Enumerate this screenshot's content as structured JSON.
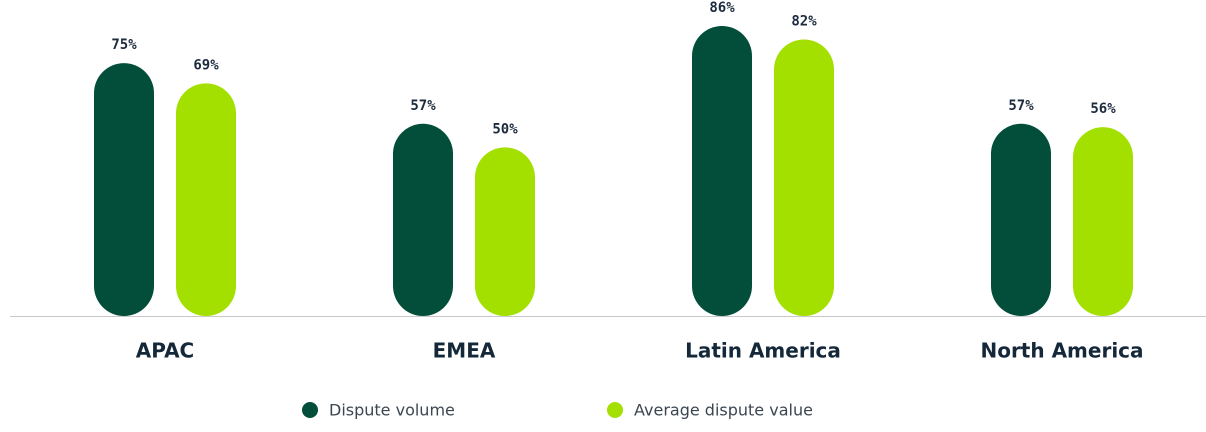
{
  "chart_data": {
    "type": "bar",
    "categories": [
      "APAC",
      "EMEA",
      "Latin America",
      "North America"
    ],
    "series": [
      {
        "name": "Dispute volume",
        "color": "#034e3a",
        "values": [
          75,
          57,
          86,
          57
        ],
        "value_labels": [
          "75%",
          "57%",
          "86%",
          "57%"
        ]
      },
      {
        "name": "Average dispute value",
        "color": "#a3e000",
        "values": [
          69,
          50,
          82,
          56
        ],
        "value_labels": [
          "69%",
          "50%",
          "82%",
          "56%"
        ]
      }
    ]
  }
}
